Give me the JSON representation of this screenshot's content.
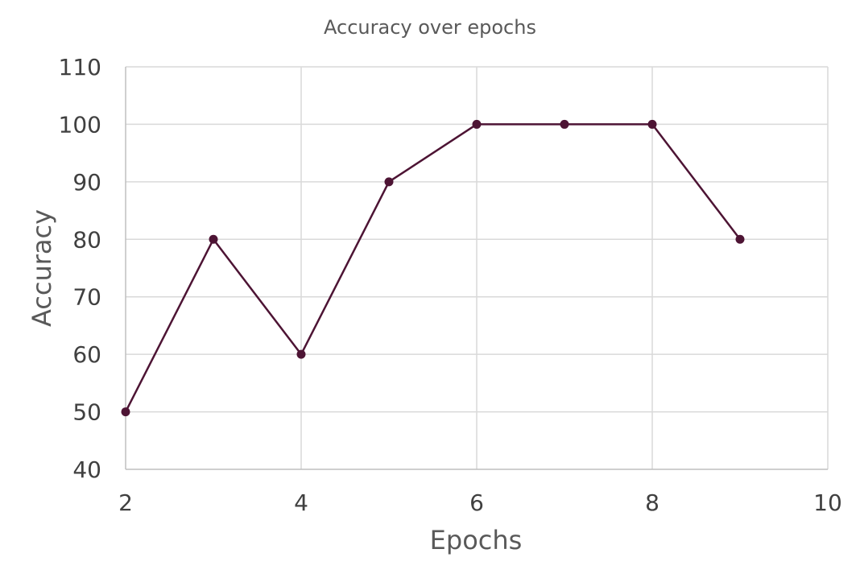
{
  "chart_data": {
    "type": "scatter",
    "title": "Accuracy over epochs",
    "xlabel": "Epochs",
    "ylabel": "Accuracy",
    "xlim": [
      2,
      10
    ],
    "ylim": [
      40,
      110
    ],
    "xticks": [
      "2",
      "4",
      "6",
      "8",
      "10"
    ],
    "yticks": [
      "40",
      "50",
      "60",
      "70",
      "80",
      "90",
      "100",
      "110"
    ],
    "grid": true,
    "legend": "none",
    "series": [
      {
        "x": [
          2,
          3,
          4,
          5,
          6,
          7,
          8,
          9
        ],
        "values": [
          50,
          80,
          60,
          90,
          100,
          100,
          100,
          80
        ],
        "color": "#4d1434",
        "markers": true,
        "line": "straight"
      }
    ]
  }
}
